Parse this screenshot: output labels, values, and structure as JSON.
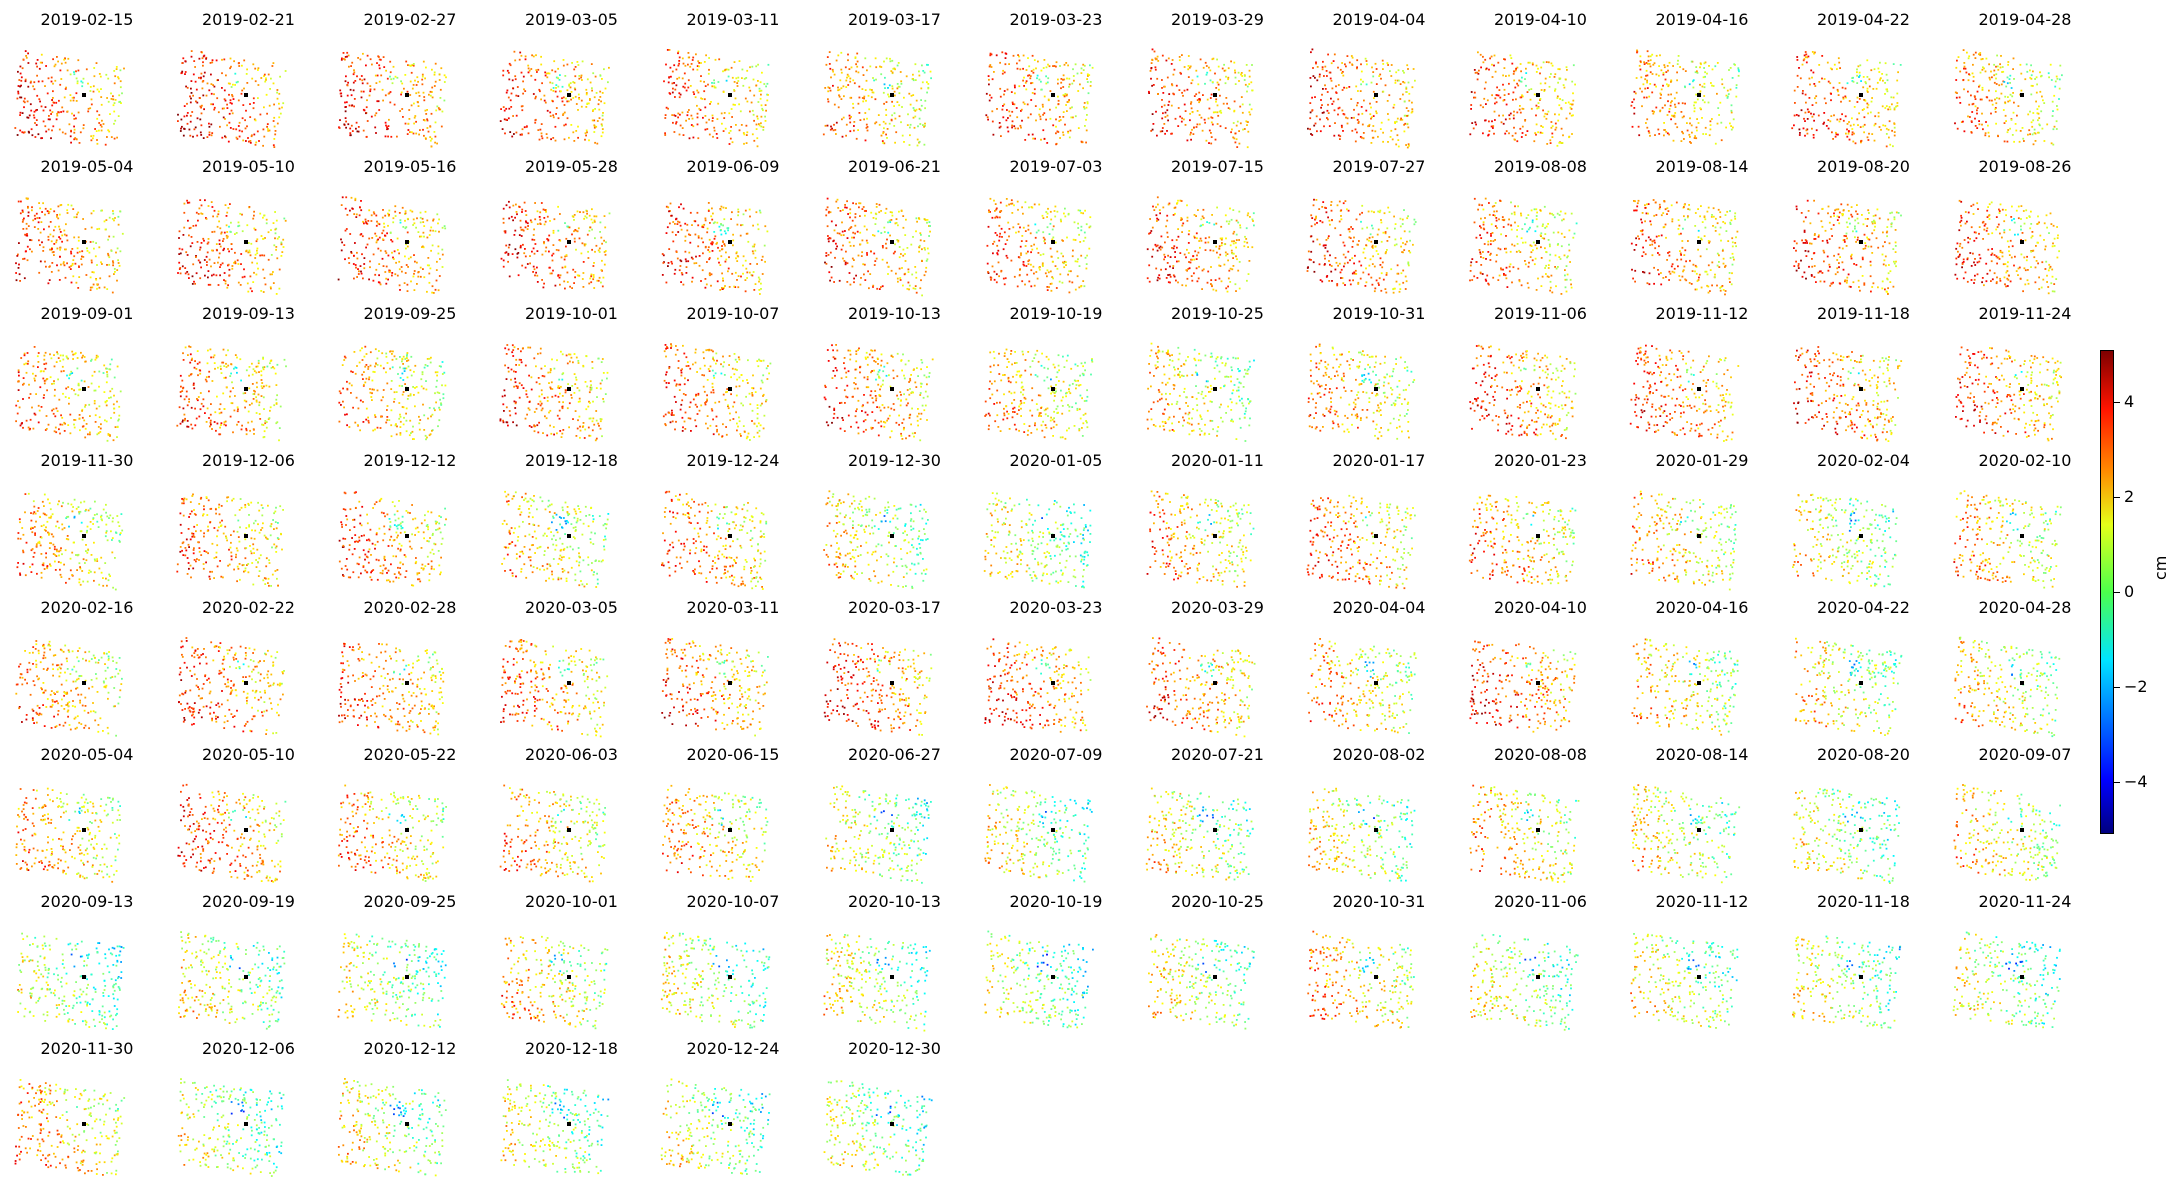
{
  "chart_data": {
    "type": "scatter",
    "panels": [
      "2019-02-15",
      "2019-02-21",
      "2019-02-27",
      "2019-03-05",
      "2019-03-11",
      "2019-03-17",
      "2019-03-23",
      "2019-03-29",
      "2019-04-04",
      "2019-04-10",
      "2019-04-16",
      "2019-04-22",
      "2019-04-28",
      "2019-05-04",
      "2019-05-10",
      "2019-05-16",
      "2019-05-28",
      "2019-06-09",
      "2019-06-21",
      "2019-07-03",
      "2019-07-15",
      "2019-07-27",
      "2019-08-08",
      "2019-08-14",
      "2019-08-20",
      "2019-08-26",
      "2019-09-01",
      "2019-09-13",
      "2019-09-25",
      "2019-10-01",
      "2019-10-07",
      "2019-10-13",
      "2019-10-19",
      "2019-10-25",
      "2019-10-31",
      "2019-11-06",
      "2019-11-12",
      "2019-11-18",
      "2019-11-24",
      "2019-11-30",
      "2019-12-06",
      "2019-12-12",
      "2019-12-18",
      "2019-12-24",
      "2019-12-30",
      "2020-01-05",
      "2020-01-11",
      "2020-01-17",
      "2020-01-23",
      "2020-01-29",
      "2020-02-04",
      "2020-02-10",
      "2020-02-16",
      "2020-02-22",
      "2020-02-28",
      "2020-03-05",
      "2020-03-11",
      "2020-03-17",
      "2020-03-23",
      "2020-03-29",
      "2020-04-04",
      "2020-04-10",
      "2020-04-16",
      "2020-04-22",
      "2020-04-28",
      "2020-05-04",
      "2020-05-10",
      "2020-05-22",
      "2020-06-03",
      "2020-06-15",
      "2020-06-27",
      "2020-07-09",
      "2020-07-21",
      "2020-08-02",
      "2020-08-08",
      "2020-08-14",
      "2020-08-20",
      "2020-09-07",
      "2020-09-13",
      "2020-09-19",
      "2020-09-25",
      "2020-10-01",
      "2020-10-07",
      "2020-10-13",
      "2020-10-19",
      "2020-10-25",
      "2020-10-31",
      "2020-11-06",
      "2020-11-12",
      "2020-11-18",
      "2020-11-24",
      "2020-11-30",
      "2020-12-06",
      "2020-12-12",
      "2020-12-18",
      "2020-12-24",
      "2020-12-30"
    ],
    "panel_mean_displacement_cm": [
      2.5,
      2.8,
      2.6,
      2.5,
      2.2,
      1.8,
      2.3,
      2.4,
      2.5,
      2.4,
      1.8,
      2.2,
      1.6,
      2.3,
      2.5,
      2.4,
      2.6,
      2.4,
      2.2,
      2.0,
      2.2,
      2.3,
      1.8,
      2.2,
      2.4,
      2.2,
      1.8,
      2.0,
      1.6,
      2.3,
      2.2,
      2.3,
      1.5,
      1.0,
      1.6,
      2.4,
      2.3,
      2.4,
      2.4,
      1.5,
      2.0,
      2.2,
      1.2,
      2.0,
      0.8,
      0.4,
      1.6,
      2.0,
      1.8,
      1.3,
      0.6,
      1.5,
      1.8,
      2.4,
      2.0,
      2.0,
      2.2,
      2.6,
      2.4,
      2.2,
      1.4,
      2.6,
      1.2,
      1.0,
      1.0,
      1.5,
      2.3,
      1.6,
      1.6,
      1.6,
      0.4,
      0.5,
      0.7,
      0.6,
      1.4,
      0.7,
      0.4,
      1.0,
      0.0,
      0.5,
      0.2,
      1.3,
      0.3,
      0.5,
      0.0,
      0.5,
      1.5,
      0.3,
      0.5,
      0.3,
      0.1,
      1.6,
      0.2,
      0.5,
      0.3,
      0.2,
      0.0
    ],
    "colorbar": {
      "label": "cm",
      "range": [
        -5,
        5
      ],
      "ticks": [
        "4",
        "2",
        "0",
        "−2",
        "−4"
      ],
      "tick_values": [
        4,
        2,
        0,
        -2,
        -4
      ],
      "colormap": "jet"
    },
    "grid": false,
    "legend": "none"
  },
  "colors": {
    "marker": "#000000",
    "jet_low": "#00007f",
    "jet_high": "#7f0000"
  }
}
